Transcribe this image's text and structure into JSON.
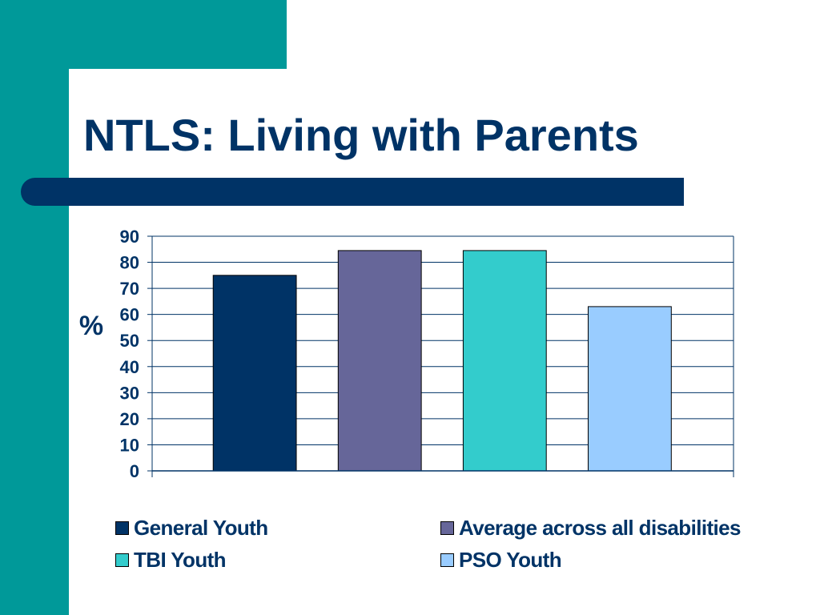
{
  "slide": {
    "title": "NTLS: Living with Parents",
    "colors": {
      "accent": "#009999",
      "title_bar": "#003366",
      "text": "#003366"
    }
  },
  "chart_data": {
    "type": "bar",
    "ylabel": "%",
    "ylim": [
      0,
      90
    ],
    "yticks": [
      0,
      10,
      20,
      30,
      40,
      50,
      60,
      70,
      80,
      90
    ],
    "grid": true,
    "legend_position": "bottom",
    "series": [
      {
        "name": "General Youth",
        "value": 75,
        "color": "#003366"
      },
      {
        "name": "Average across all disabilities",
        "value": 84.5,
        "color": "#666699"
      },
      {
        "name": "TBI Youth",
        "value": 84.5,
        "color": "#33CCCC"
      },
      {
        "name": "PSO Youth",
        "value": 63,
        "color": "#99CCFF"
      }
    ]
  }
}
